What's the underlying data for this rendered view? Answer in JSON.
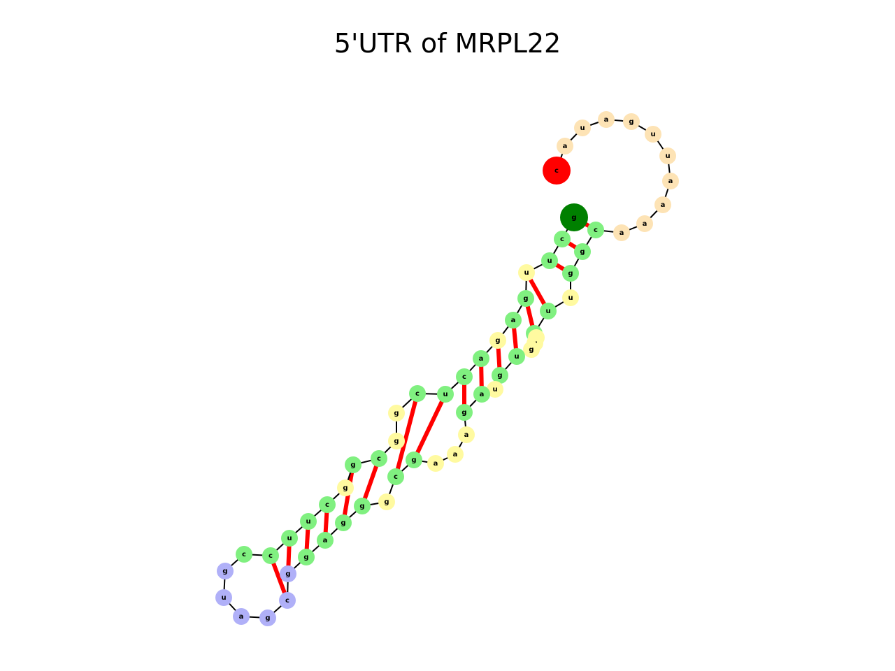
{
  "title": "5'UTR of MRPL22",
  "colors": {
    "backbone": "#000000",
    "pair": "#ff0000",
    "stem": "#80f080",
    "interior": "#fffaa0",
    "hairpin": "#b0b0f8",
    "exterior": "#fde3b5",
    "five_prime": "#ff0000",
    "three_prime": "#008000"
  },
  "sequence": [
    {
      "base": "c",
      "region": "five_prime"
    },
    {
      "base": "a",
      "region": "exterior"
    },
    {
      "base": "u",
      "region": "exterior"
    },
    {
      "base": "a",
      "region": "exterior"
    },
    {
      "base": "g",
      "region": "exterior"
    },
    {
      "base": "u",
      "region": "exterior"
    },
    {
      "base": "u",
      "region": "exterior"
    },
    {
      "base": "a",
      "region": "exterior"
    },
    {
      "base": "a",
      "region": "exterior"
    },
    {
      "base": "a",
      "region": "exterior"
    },
    {
      "base": "a",
      "region": "exterior"
    },
    {
      "base": "c",
      "region": "stem"
    },
    {
      "base": "g",
      "region": "stem"
    },
    {
      "base": "g",
      "region": "stem"
    },
    {
      "base": "u",
      "region": "interior"
    },
    {
      "base": "u",
      "region": "stem"
    },
    {
      "base": "u",
      "region": "stem"
    },
    {
      "base": "a",
      "region": "interior"
    },
    {
      "base": "u",
      "region": "interior"
    },
    {
      "base": "g",
      "region": "interior"
    },
    {
      "base": "u",
      "region": "stem"
    },
    {
      "base": "g",
      "region": "stem"
    },
    {
      "base": "u",
      "region": "interior"
    },
    {
      "base": "a",
      "region": "stem"
    },
    {
      "base": "g",
      "region": "stem"
    },
    {
      "base": "a",
      "region": "interior"
    },
    {
      "base": "a",
      "region": "interior"
    },
    {
      "base": "a",
      "region": "interior"
    },
    {
      "base": "g",
      "region": "stem"
    },
    {
      "base": "c",
      "region": "stem"
    },
    {
      "base": "g",
      "region": "interior"
    },
    {
      "base": "g",
      "region": "stem"
    },
    {
      "base": "g",
      "region": "stem"
    },
    {
      "base": "a",
      "region": "stem"
    },
    {
      "base": "g",
      "region": "stem"
    },
    {
      "base": "g",
      "region": "hairpin"
    },
    {
      "base": "c",
      "region": "hairpin"
    },
    {
      "base": "g",
      "region": "hairpin"
    },
    {
      "base": "a",
      "region": "hairpin"
    },
    {
      "base": "u",
      "region": "hairpin"
    },
    {
      "base": "g",
      "region": "hairpin"
    },
    {
      "base": "c",
      "region": "stem"
    },
    {
      "base": "c",
      "region": "stem"
    },
    {
      "base": "u",
      "region": "stem"
    },
    {
      "base": "u",
      "region": "stem"
    },
    {
      "base": "c",
      "region": "stem"
    },
    {
      "base": "g",
      "region": "interior"
    },
    {
      "base": "g",
      "region": "stem"
    },
    {
      "base": "c",
      "region": "stem"
    },
    {
      "base": "g",
      "region": "interior"
    },
    {
      "base": "g",
      "region": "interior"
    },
    {
      "base": "c",
      "region": "stem"
    },
    {
      "base": "u",
      "region": "stem"
    },
    {
      "base": "c",
      "region": "stem"
    },
    {
      "base": "a",
      "region": "stem"
    },
    {
      "base": "g",
      "region": "interior"
    },
    {
      "base": "a",
      "region": "stem"
    },
    {
      "base": "g",
      "region": "stem"
    },
    {
      "base": "u",
      "region": "interior"
    },
    {
      "base": "u",
      "region": "stem"
    },
    {
      "base": "c",
      "region": "stem"
    },
    {
      "base": "g",
      "region": "three_prime"
    }
  ],
  "pairs": [
    [
      11,
      61
    ],
    [
      12,
      60
    ],
    [
      13,
      59
    ],
    [
      15,
      58
    ],
    [
      16,
      57
    ],
    [
      20,
      56
    ],
    [
      21,
      55
    ],
    [
      23,
      54
    ],
    [
      24,
      53
    ],
    [
      28,
      52
    ],
    [
      29,
      51
    ],
    [
      31,
      48
    ],
    [
      32,
      47
    ],
    [
      33,
      45
    ],
    [
      34,
      44
    ],
    [
      35,
      43
    ],
    [
      36,
      42
    ]
  ]
}
